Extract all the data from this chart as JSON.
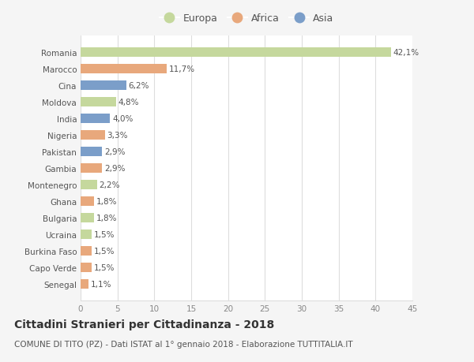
{
  "categories": [
    "Romania",
    "Marocco",
    "Cina",
    "Moldova",
    "India",
    "Nigeria",
    "Pakistan",
    "Gambia",
    "Montenegro",
    "Ghana",
    "Bulgaria",
    "Ucraina",
    "Burkina Faso",
    "Capo Verde",
    "Senegal"
  ],
  "values": [
    42.1,
    11.7,
    6.2,
    4.8,
    4.0,
    3.3,
    2.9,
    2.9,
    2.2,
    1.8,
    1.8,
    1.5,
    1.5,
    1.5,
    1.1
  ],
  "labels": [
    "42,1%",
    "11,7%",
    "6,2%",
    "4,8%",
    "4,0%",
    "3,3%",
    "2,9%",
    "2,9%",
    "2,2%",
    "1,8%",
    "1,8%",
    "1,5%",
    "1,5%",
    "1,5%",
    "1,1%"
  ],
  "continents": [
    "Europa",
    "Africa",
    "Asia",
    "Europa",
    "Asia",
    "Africa",
    "Asia",
    "Africa",
    "Europa",
    "Africa",
    "Europa",
    "Europa",
    "Africa",
    "Africa",
    "Africa"
  ],
  "colors": {
    "Europa": "#c5d89d",
    "Africa": "#e8a87c",
    "Asia": "#7b9ec9"
  },
  "xlim": [
    0,
    45
  ],
  "xticks": [
    0,
    5,
    10,
    15,
    20,
    25,
    30,
    35,
    40,
    45
  ],
  "title": "Cittadini Stranieri per Cittadinanza - 2018",
  "subtitle": "COMUNE DI TITO (PZ) - Dati ISTAT al 1° gennaio 2018 - Elaborazione TUTTITALIA.IT",
  "background_color": "#f5f5f5",
  "plot_background_color": "#ffffff",
  "grid_color": "#dddddd",
  "bar_height": 0.55,
  "title_fontsize": 10,
  "subtitle_fontsize": 7.5,
  "label_fontsize": 7.5,
  "tick_fontsize": 7.5,
  "legend_fontsize": 9,
  "legend_order": [
    "Europa",
    "Africa",
    "Asia"
  ]
}
